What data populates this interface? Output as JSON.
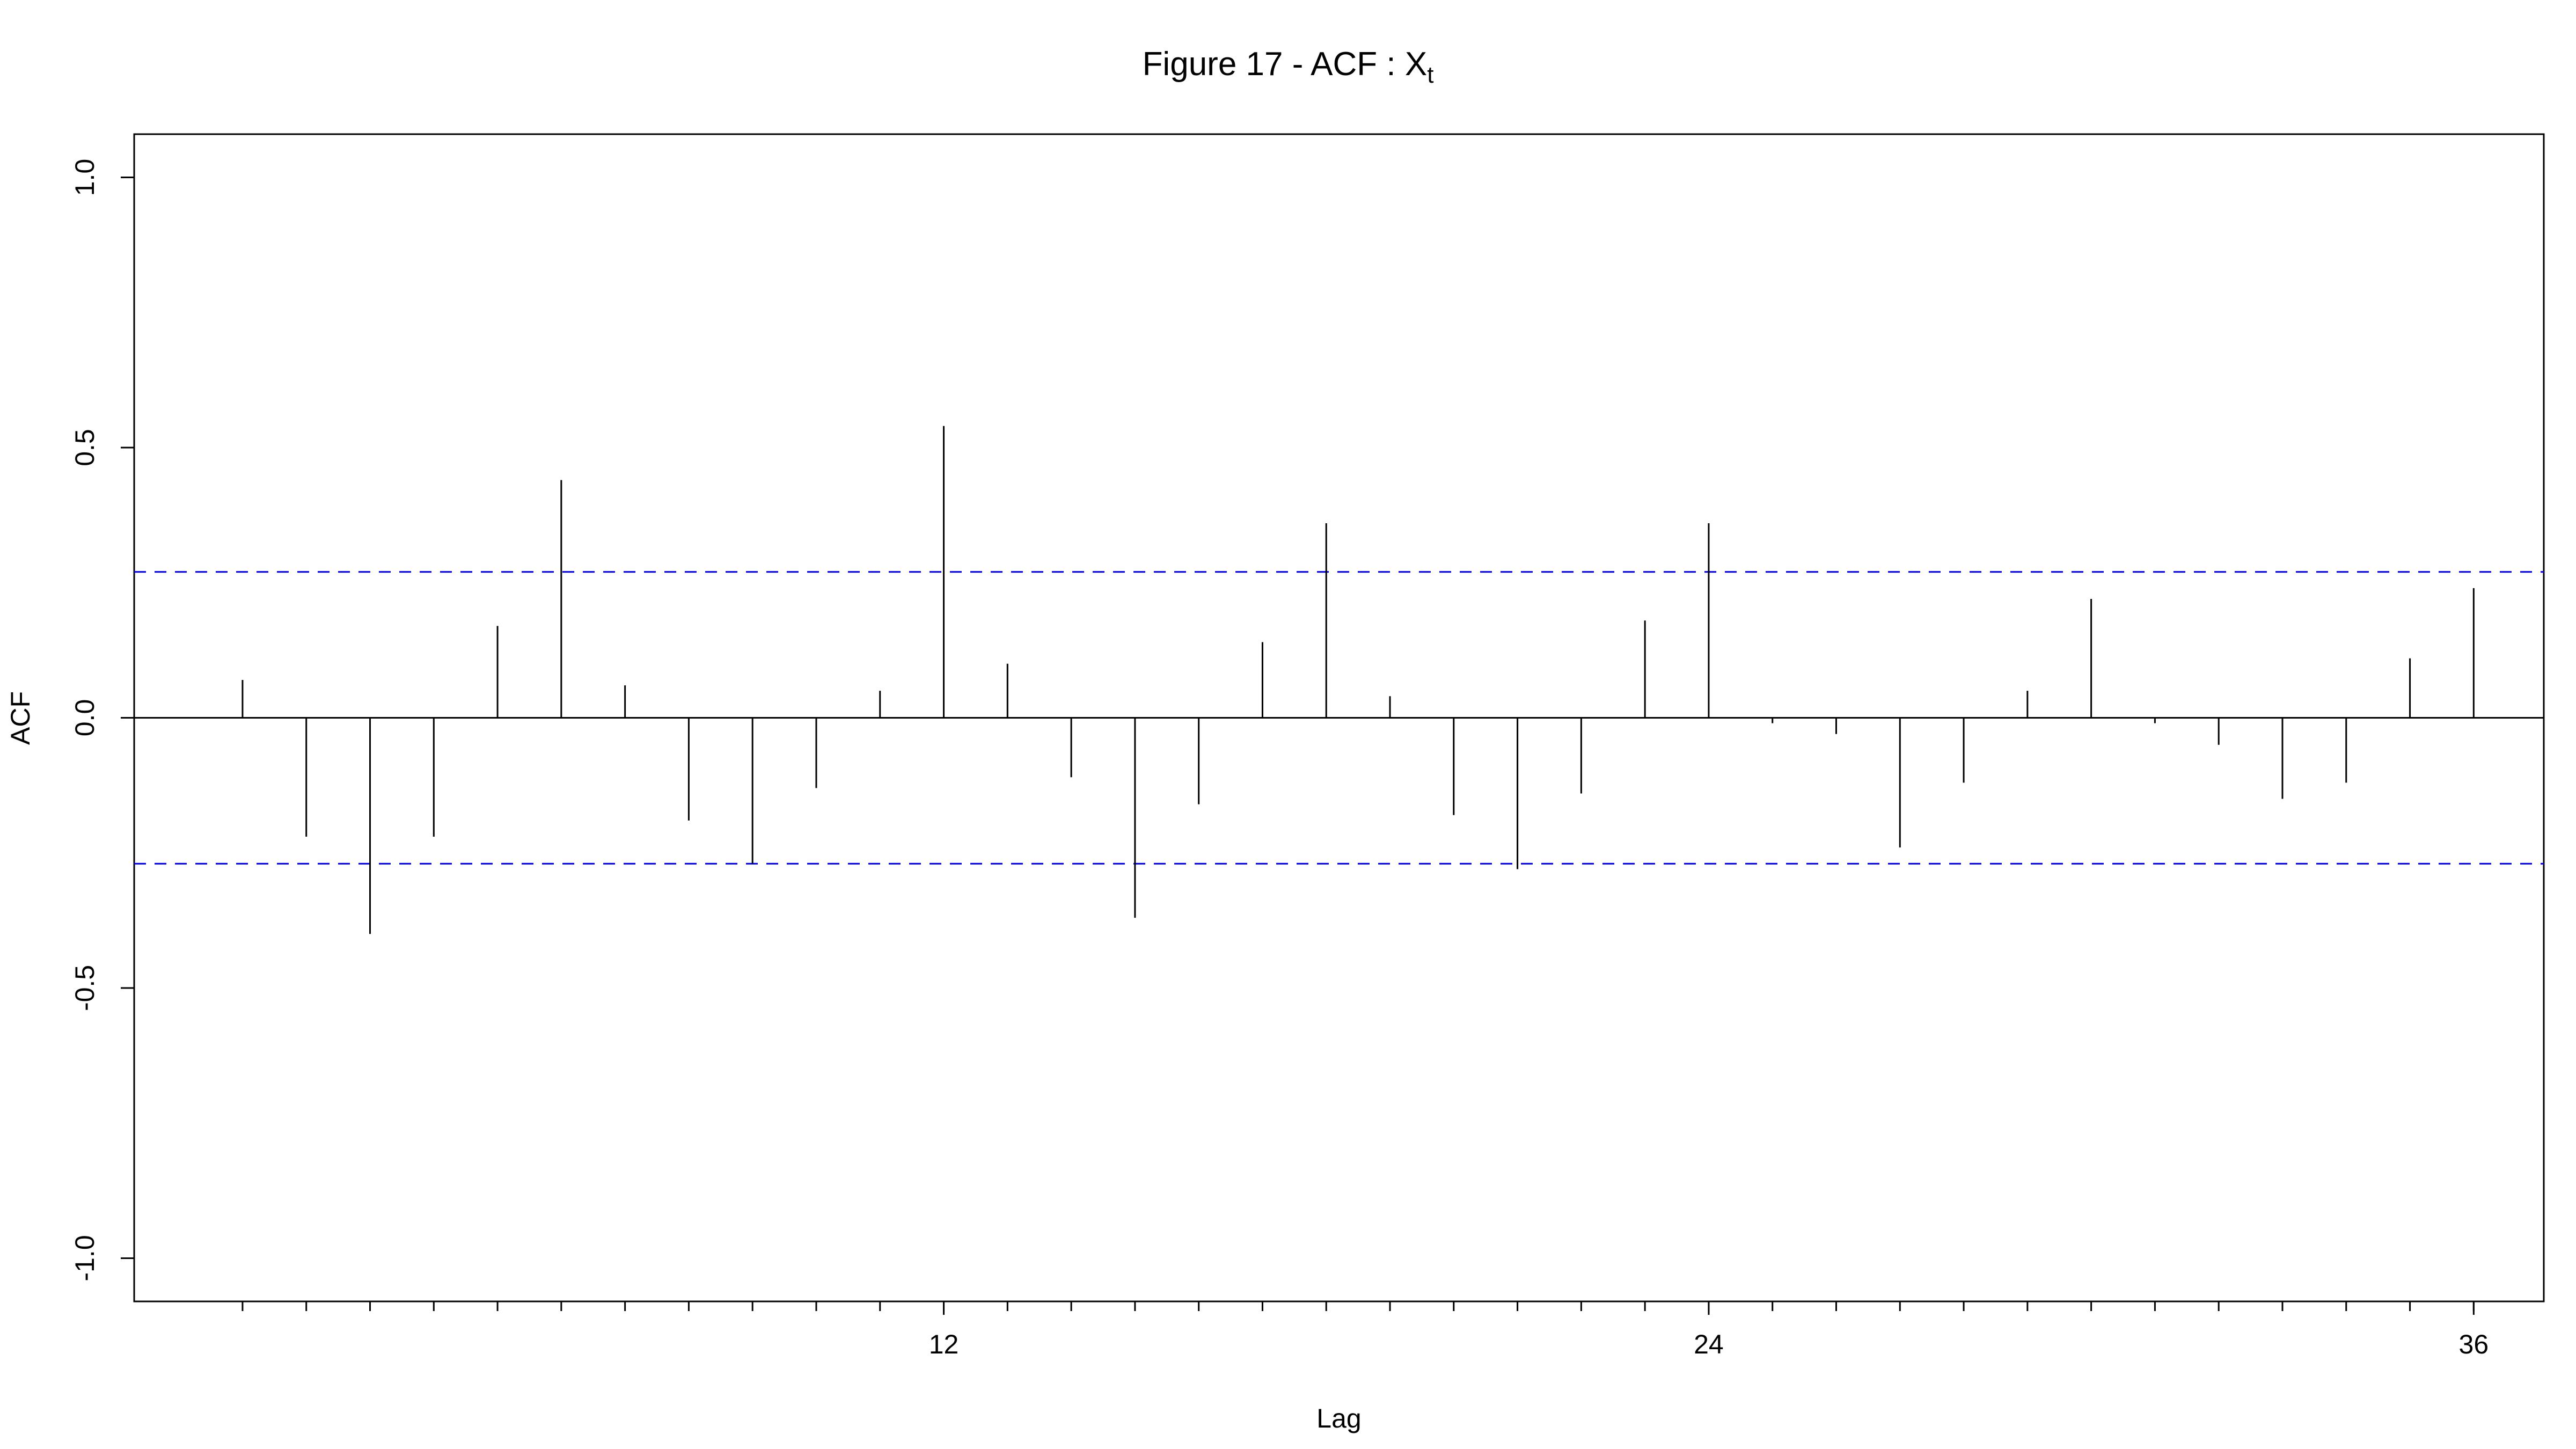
{
  "chart_data": {
    "type": "bar",
    "title": "Figure 17 - ACF : X",
    "title_subscript": "t",
    "xlabel": "Lag",
    "ylabel": "ACF",
    "ylim": [
      -1.08,
      1.08
    ],
    "xlim": [
      -0.7,
      37.1
    ],
    "y_ticks": [
      -1.0,
      -0.5,
      0.0,
      0.5,
      1.0
    ],
    "y_tick_labels": [
      "-1.0",
      "-0.5",
      "0.0",
      "0.5",
      "1.0"
    ],
    "x_labeled_ticks": [
      12,
      24,
      36
    ],
    "x_tick_labels": [
      "12",
      "24",
      "36"
    ],
    "x_minor_ticks": [
      1,
      2,
      3,
      4,
      5,
      6,
      7,
      8,
      9,
      10,
      11,
      12,
      13,
      14,
      15,
      16,
      17,
      18,
      19,
      20,
      21,
      22,
      23,
      24,
      25,
      26,
      27,
      28,
      29,
      30,
      31,
      32,
      33,
      34,
      35,
      36
    ],
    "lags": [
      1,
      2,
      3,
      4,
      5,
      6,
      7,
      8,
      9,
      10,
      11,
      12,
      13,
      14,
      15,
      16,
      17,
      18,
      19,
      20,
      21,
      22,
      23,
      24,
      25,
      26,
      27,
      28,
      29,
      30,
      31,
      32,
      33,
      34,
      35,
      36
    ],
    "values": [
      0.07,
      -0.22,
      -0.4,
      -0.22,
      0.17,
      0.44,
      0.06,
      -0.19,
      -0.27,
      -0.13,
      0.05,
      0.54,
      0.1,
      -0.11,
      -0.37,
      -0.16,
      0.14,
      0.36,
      0.04,
      -0.18,
      -0.28,
      -0.14,
      0.18,
      0.36,
      -0.01,
      -0.03,
      -0.24,
      -0.12,
      0.05,
      0.22,
      -0.01,
      -0.05,
      -0.15,
      -0.12,
      0.11,
      0.24
    ],
    "confidence_limit": 0.27,
    "colors": {
      "spike": "#000000",
      "confidence": "#0000ff",
      "axis": "#000000"
    }
  }
}
